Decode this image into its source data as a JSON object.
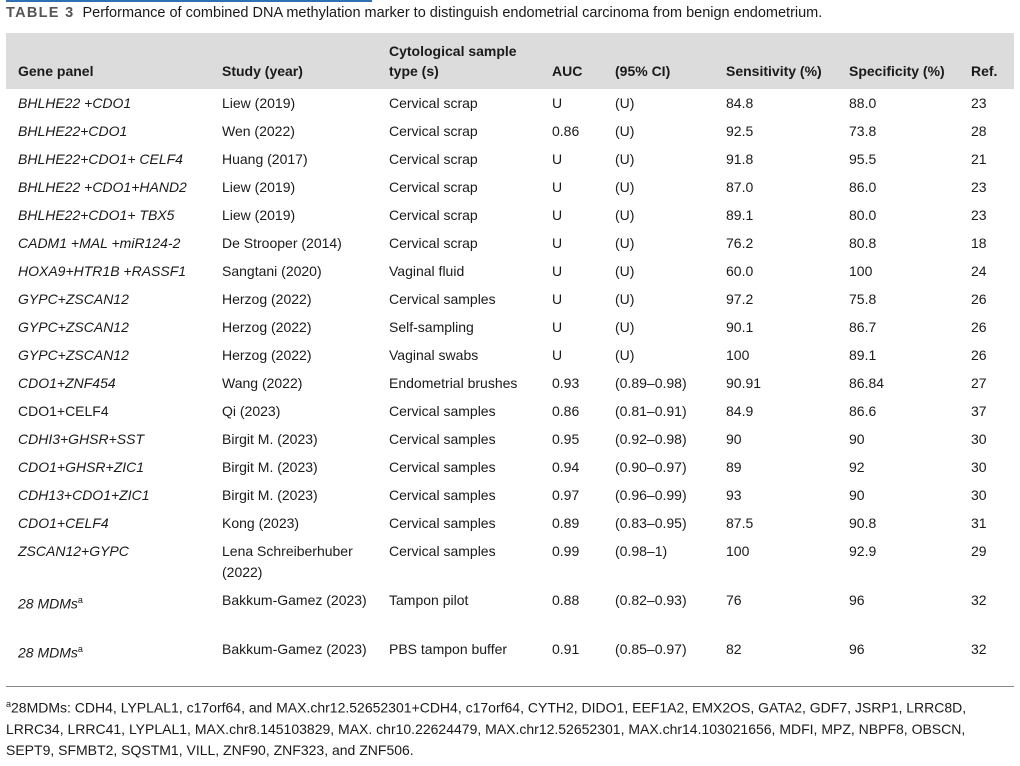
{
  "caption": {
    "label": "TABLE 3",
    "text": "Performance of combined DNA methylation marker to distinguish endometrial carcinoma from benign endometrium."
  },
  "headers": [
    "Gene panel",
    "Study (year)",
    "Cytological sample type (s)",
    "AUC",
    "(95% CI)",
    "Sensitivity (%)",
    "Specificity (%)",
    "Ref."
  ],
  "rows": [
    {
      "gene": "BHLHE22 +CDO1",
      "study": "Liew (2019)",
      "sample": "Cervical scrap",
      "auc": "U",
      "ci": "(U)",
      "sens": "84.8",
      "spec": "88.0",
      "ref": "23"
    },
    {
      "gene": "BHLHE22+CDO1",
      "study": "Wen (2022)",
      "sample": "Cervical scrap",
      "auc": "0.86",
      "ci": "(U)",
      "sens": "92.5",
      "spec": "73.8",
      "ref": "28"
    },
    {
      "gene": "BHLHE22+CDO1+ CELF4",
      "study": "Huang (2017)",
      "sample": "Cervical scrap",
      "auc": "U",
      "ci": "(U)",
      "sens": "91.8",
      "spec": "95.5",
      "ref": "21"
    },
    {
      "gene": "BHLHE22 +CDO1+HAND2",
      "study": "Liew (2019)",
      "sample": "Cervical scrap",
      "auc": "U",
      "ci": "(U)",
      "sens": "87.0",
      "spec": "86.0",
      "ref": "23"
    },
    {
      "gene": "BHLHE22+CDO1+ TBX5",
      "study": "Liew (2019)",
      "sample": "Cervical scrap",
      "auc": "U",
      "ci": "(U)",
      "sens": "89.1",
      "spec": "80.0",
      "ref": "23"
    },
    {
      "gene": "CADM1 +MAL +miR124-2",
      "study": "De Strooper (2014)",
      "sample": "Cervical scrap",
      "auc": "U",
      "ci": "(U)",
      "sens": "76.2",
      "spec": "80.8",
      "ref": "18"
    },
    {
      "gene": "HOXA9+HTR1B +RASSF1",
      "study": "Sangtani (2020)",
      "sample": "Vaginal fluid",
      "auc": "U",
      "ci": "(U)",
      "sens": "60.0",
      "spec": "100",
      "ref": "24"
    },
    {
      "gene": "GYPC+ZSCAN12",
      "study": "Herzog (2022)",
      "sample": "Cervical samples",
      "auc": "U",
      "ci": "(U)",
      "sens": "97.2",
      "spec": "75.8",
      "ref": "26"
    },
    {
      "gene": "GYPC+ZSCAN12",
      "study": "Herzog (2022)",
      "sample": "Self-sampling",
      "auc": "U",
      "ci": "(U)",
      "sens": "90.1",
      "spec": "86.7",
      "ref": "26"
    },
    {
      "gene": "GYPC+ZSCAN12",
      "study": "Herzog (2022)",
      "sample": "Vaginal swabs",
      "auc": "U",
      "ci": "(U)",
      "sens": "100",
      "spec": "89.1",
      "ref": "26"
    },
    {
      "gene": "CDO1+ZNF454",
      "study": "Wang (2022)",
      "sample": "Endometrial brushes",
      "auc": "0.93",
      "ci": "(0.89–0.98)",
      "sens": "90.91",
      "spec": "86.84",
      "ref": "27"
    },
    {
      "gene": "CDO1+CELF4",
      "study": "Qi (2023)",
      "sample": "Cervical samples",
      "auc": "0.86",
      "ci": "(0.81–0.91)",
      "sens": "84.9",
      "spec": "86.6",
      "ref": "37"
    },
    {
      "gene": "CDHI3+GHSR+SST",
      "study": "Birgit M. (2023)",
      "sample": "Cervical samples",
      "auc": "0.95",
      "ci": "(0.92–0.98)",
      "sens": "90",
      "spec": "90",
      "ref": "30"
    },
    {
      "gene": "CDO1+GHSR+ZIC1",
      "study": "Birgit M. (2023)",
      "sample": "Cervical samples",
      "auc": "0.94",
      "ci": "(0.90–0.97)",
      "sens": "89",
      "spec": "92",
      "ref": "30"
    },
    {
      "gene": "CDH13+CDO1+ZIC1",
      "study": "Birgit M. (2023)",
      "sample": "Cervical samples",
      "auc": "0.97",
      "ci": "(0.96–0.99)",
      "sens": "93",
      "spec": "90",
      "ref": "30"
    },
    {
      "gene": "CDO1+CELF4",
      "study": "Kong (2023)",
      "sample": "Cervical samples",
      "auc": "0.89",
      "ci": "(0.83–0.95)",
      "sens": "87.5",
      "spec": "90.8",
      "ref": "31"
    },
    {
      "gene": "ZSCAN12+GYPC",
      "study": "Lena Schreiberhuber (2022)",
      "sample": "Cervical samples",
      "auc": "0.99",
      "ci": "(0.98–1)",
      "sens": "100",
      "spec": "92.9",
      "ref": "29"
    },
    {
      "gene": "28 MDMs",
      "gene_sup": "a",
      "study": "Bakkum-Gamez (2023)",
      "sample": "Tampon pilot",
      "auc": "0.88",
      "ci": "(0.82–0.93)",
      "sens": "76",
      "spec": "96",
      "ref": "32"
    },
    {
      "gene": "28 MDMs",
      "gene_sup": "a",
      "study": "Bakkum-Gamez (2023)",
      "sample": "PBS tampon buffer",
      "auc": "0.91",
      "ci": "(0.85–0.97)",
      "sens": "82",
      "spec": "96",
      "ref": "32"
    }
  ],
  "footnote": {
    "sup": "a",
    "text": "28MDMs: CDH4, LYPLAL1, c17orf64, and MAX.chr12.52652301+CDH4, c17orf64, CYTH2, DIDO1, EEF1A2, EMX2OS, GATA2, GDF7, JSRP1, LRRC8D, LRRC34, LRRC41, LYPLAL1, MAX.chr8.145103829, MAX. chr10.22624479, MAX.chr12.52652301, MAX.chr14.103021656, MDFI, MPZ, NBPF8, OBSCN, SEPT9, SFMBT2, SQSTM1, VILL, ZNF90, ZNF323, and ZNF506."
  }
}
